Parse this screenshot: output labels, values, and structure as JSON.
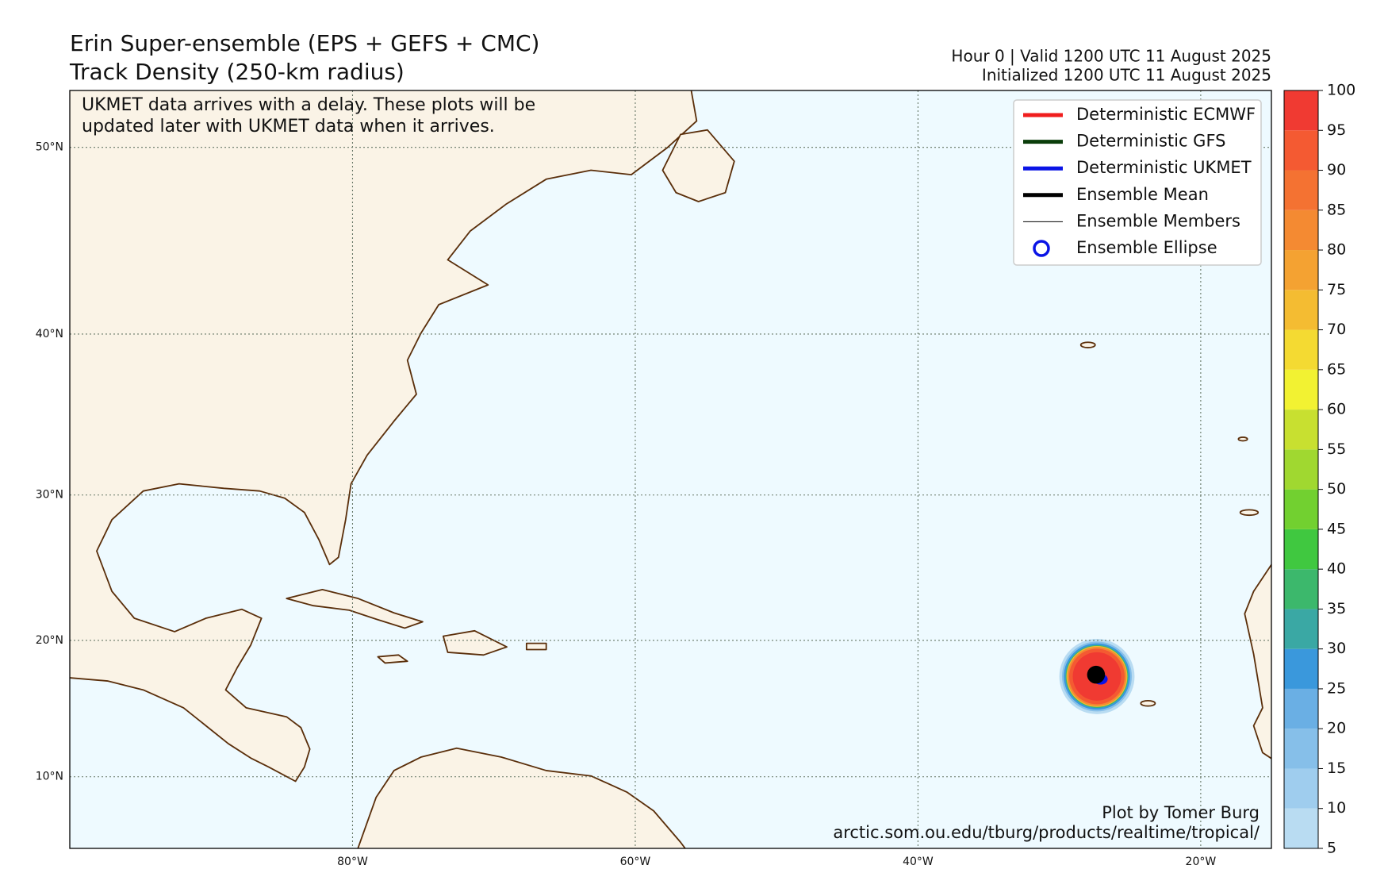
{
  "header": {
    "title": [
      "Erin Super-ensemble (EPS + GEFS + CMC)",
      "Track Density (250-km radius)"
    ],
    "valid": "Hour 0 | Valid 1200 UTC 11 August 2025",
    "initialized": "Initialized 1200 UTC 11 August 2025"
  },
  "note": [
    "UKMET data arrives with a delay. These plots will be",
    "updated later with UKMET data when it arrives."
  ],
  "map": {
    "lon_range": [
      -100,
      -15
    ],
    "lat_range": [
      4.6,
      52.7
    ],
    "lon_ticks": [
      {
        "value": -80,
        "label": "80°W"
      },
      {
        "value": -60,
        "label": "60°W"
      },
      {
        "value": -40,
        "label": "40°W"
      },
      {
        "value": -20,
        "label": "20°W"
      }
    ],
    "lat_ticks": [
      {
        "value": 10,
        "label": "10°N"
      },
      {
        "value": 20,
        "label": "20°N"
      },
      {
        "value": 30,
        "label": "30°N"
      },
      {
        "value": 40,
        "label": "40°N"
      },
      {
        "value": 50,
        "label": "50°N"
      }
    ]
  },
  "legend": [
    {
      "name": "Deterministic ECMWF",
      "color": "#f01e1e",
      "style": "thick-line"
    },
    {
      "name": "Deterministic GFS",
      "color": "#0a3d0a",
      "style": "thick-line"
    },
    {
      "name": "Deterministic UKMET",
      "color": "#0a14e6",
      "style": "thick-line"
    },
    {
      "name": "Ensemble Mean",
      "color": "#000000",
      "style": "thick-line"
    },
    {
      "name": "Ensemble Members",
      "color": "#000000",
      "style": "thin-line"
    },
    {
      "name": "Ensemble Ellipse",
      "color": "#0a14e6",
      "style": "circle"
    }
  ],
  "colorbar": {
    "ticks": [
      5,
      10,
      15,
      20,
      25,
      30,
      35,
      40,
      45,
      50,
      55,
      60,
      65,
      70,
      75,
      80,
      85,
      90,
      95,
      100
    ],
    "colors": [
      "#b9dcf2",
      "#9fcdee",
      "#86bfe9",
      "#6aafe4",
      "#3a98dc",
      "#3aa8a4",
      "#3cb86c",
      "#40c840",
      "#72d030",
      "#a0d830",
      "#c8e030",
      "#f2f232",
      "#f4da32",
      "#f4bc32",
      "#f4a232",
      "#f48a32",
      "#f47232",
      "#f45a32",
      "#f03a32"
    ]
  },
  "credits": [
    "Plot by Tomer Burg",
    "arctic.som.ou.edu/tburg/products/realtime/tropical/"
  ]
}
